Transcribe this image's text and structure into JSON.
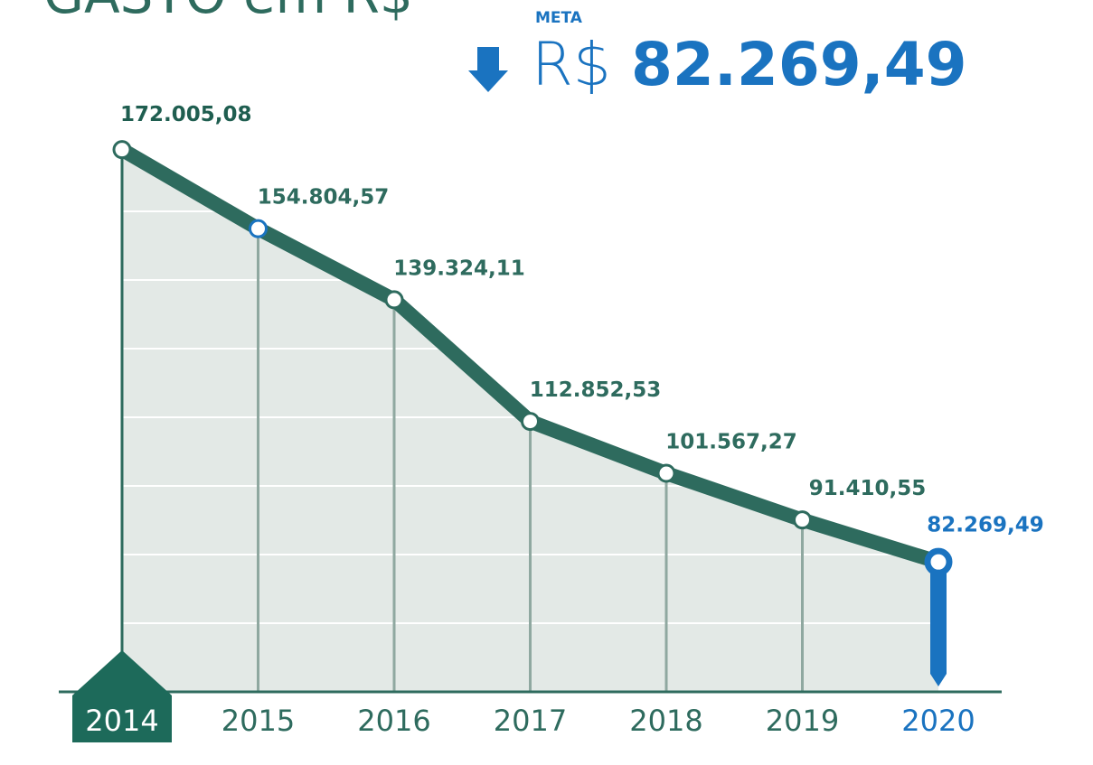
{
  "chart_data": {
    "type": "line",
    "title": "GASTO em R$",
    "annotations": [
      "META",
      "R$",
      "82.269,49"
    ],
    "categories": [
      "2014",
      "2015",
      "2016",
      "2017",
      "2018",
      "2019",
      "2020"
    ],
    "values": [
      172005.08,
      154804.57,
      139324.11,
      112852.53,
      101567.27,
      91410.55,
      82269.49
    ],
    "value_labels": [
      "172.005,08",
      "154.804,57",
      "139.324,11",
      "112.852,53",
      "101.567,27",
      "91.410,55",
      "82.269,49"
    ],
    "color": "#2e6b5e",
    "highlight_color": "#1a73c0",
    "ylim": [
      54000,
      180000
    ]
  }
}
